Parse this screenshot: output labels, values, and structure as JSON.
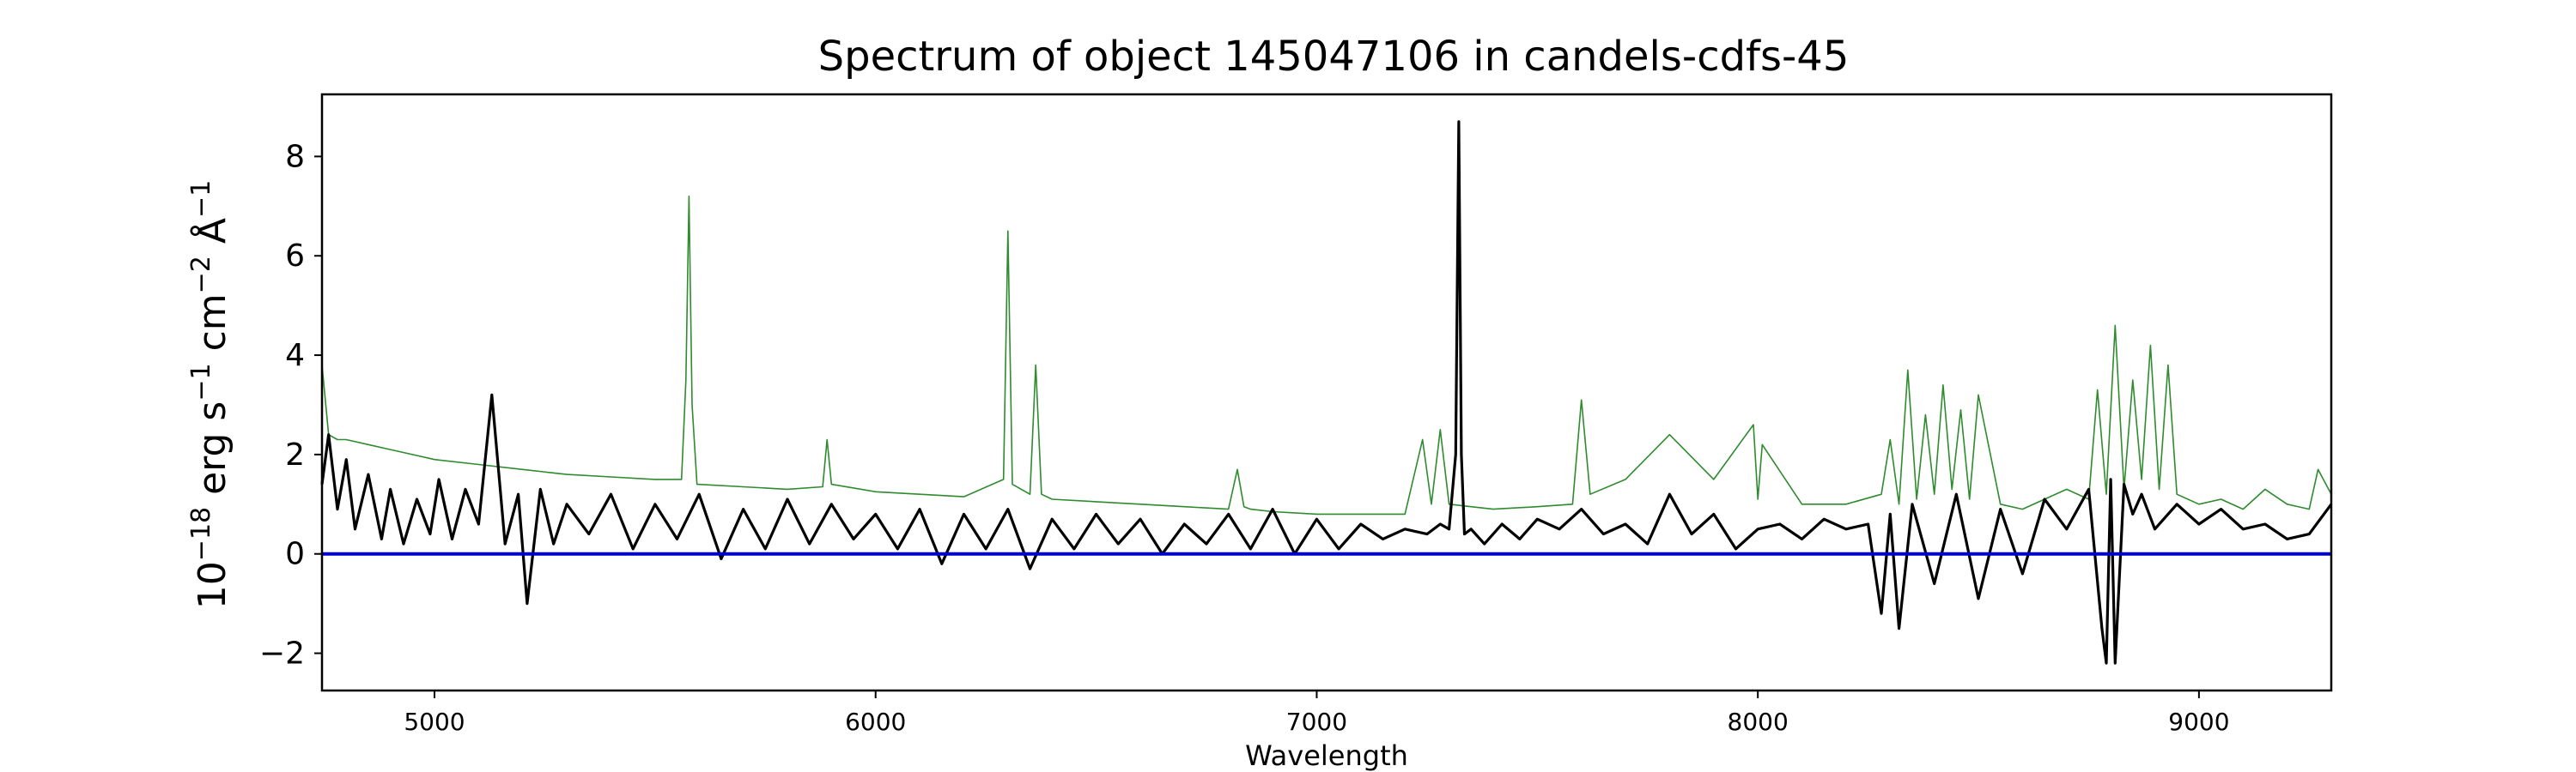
{
  "chart_data": {
    "type": "line",
    "title": "Spectrum of object 145047106 in candels-cdfs-45",
    "xlabel": "Wavelength",
    "ylabel": {
      "base": "10",
      "exp1": "−18",
      "mid1": " erg s",
      "exp2": "−1",
      "mid2": " cm",
      "exp3": "−2",
      "mid3": " Å",
      "exp4": "−1"
    },
    "xlim": [
      4745,
      9300
    ],
    "ylim": [
      -2.75,
      9.25
    ],
    "grid": false,
    "x_ticks": [
      5000,
      6000,
      7000,
      8000,
      9000
    ],
    "x_tick_labels": [
      "5000",
      "6000",
      "7000",
      "8000",
      "9000"
    ],
    "y_ticks": [
      -2,
      0,
      2,
      4,
      6,
      8
    ],
    "y_tick_labels": [
      "−2",
      "0",
      "2",
      "4",
      "6",
      "8"
    ],
    "baseline": {
      "y": 0,
      "color": "#0000cc"
    },
    "colors": {
      "flux": "#000000",
      "noise": "#2e8b2e",
      "baseline": "#0000cc"
    },
    "series": [
      {
        "key": "flux",
        "x": [
          4745,
          4760,
          4780,
          4800,
          4820,
          4850,
          4880,
          4900,
          4930,
          4960,
          4990,
          5010,
          5040,
          5070,
          5100,
          5130,
          5160,
          5190,
          5210,
          5240,
          5270,
          5300,
          5350,
          5400,
          5450,
          5500,
          5550,
          5600,
          5650,
          5700,
          5750,
          5800,
          5850,
          5900,
          5950,
          6000,
          6050,
          6100,
          6150,
          6200,
          6250,
          6300,
          6350,
          6400,
          6450,
          6500,
          6550,
          6600,
          6650,
          6700,
          6750,
          6800,
          6850,
          6900,
          6950,
          7000,
          7050,
          7100,
          7150,
          7200,
          7250,
          7280,
          7300,
          7315,
          7322,
          7328,
          7335,
          7350,
          7380,
          7420,
          7460,
          7500,
          7550,
          7600,
          7650,
          7700,
          7750,
          7800,
          7850,
          7900,
          7950,
          8000,
          8050,
          8100,
          8150,
          8200,
          8250,
          8280,
          8300,
          8320,
          8350,
          8400,
          8450,
          8500,
          8550,
          8600,
          8650,
          8700,
          8750,
          8780,
          8790,
          8800,
          8810,
          8830,
          8850,
          8870,
          8900,
          8950,
          9000,
          9050,
          9100,
          9150,
          9200,
          9250,
          9300
        ],
        "y": [
          1.4,
          2.4,
          0.9,
          1.9,
          0.5,
          1.6,
          0.3,
          1.3,
          0.2,
          1.1,
          0.4,
          1.5,
          0.3,
          1.3,
          0.6,
          3.2,
          0.2,
          1.2,
          -1.0,
          1.3,
          0.2,
          1.0,
          0.4,
          1.2,
          0.1,
          1.0,
          0.3,
          1.2,
          -0.1,
          0.9,
          0.1,
          1.1,
          0.2,
          1.0,
          0.3,
          0.8,
          0.1,
          0.9,
          -0.2,
          0.8,
          0.1,
          0.9,
          -0.3,
          0.7,
          0.1,
          0.8,
          0.2,
          0.7,
          0.0,
          0.6,
          0.2,
          0.8,
          0.1,
          0.9,
          0.0,
          0.7,
          0.1,
          0.6,
          0.3,
          0.5,
          0.4,
          0.6,
          0.5,
          2.0,
          8.7,
          2.0,
          0.4,
          0.5,
          0.2,
          0.6,
          0.3,
          0.7,
          0.5,
          0.9,
          0.4,
          0.6,
          0.2,
          1.2,
          0.4,
          0.8,
          0.1,
          0.5,
          0.6,
          0.3,
          0.7,
          0.5,
          0.6,
          -1.2,
          0.8,
          -1.5,
          1.0,
          -0.6,
          1.2,
          -0.9,
          0.9,
          -0.4,
          1.1,
          0.5,
          1.3,
          -1.5,
          -2.2,
          1.5,
          -2.2,
          1.4,
          0.8,
          1.2,
          0.5,
          1.0,
          0.6,
          0.9,
          0.5,
          0.6,
          0.3,
          0.4,
          1.0
        ]
      },
      {
        "key": "noise",
        "x": [
          4745,
          4760,
          4780,
          4800,
          4850,
          4900,
          4950,
          5000,
          5100,
          5200,
          5300,
          5400,
          5500,
          5560,
          5570,
          5577,
          5584,
          5595,
          5700,
          5800,
          5880,
          5890,
          5900,
          6000,
          6100,
          6200,
          6290,
          6300,
          6310,
          6350,
          6363,
          6376,
          6400,
          6500,
          6600,
          6700,
          6800,
          6820,
          6835,
          6850,
          6900,
          7000,
          7100,
          7200,
          7240,
          7260,
          7280,
          7300,
          7400,
          7500,
          7580,
          7600,
          7620,
          7700,
          7800,
          7900,
          7990,
          8000,
          8010,
          8100,
          8200,
          8280,
          8300,
          8320,
          8340,
          8360,
          8380,
          8400,
          8420,
          8440,
          8460,
          8480,
          8500,
          8550,
          8600,
          8700,
          8750,
          8770,
          8790,
          8810,
          8830,
          8850,
          8870,
          8890,
          8910,
          8930,
          8950,
          9000,
          9050,
          9100,
          9150,
          9200,
          9250,
          9270,
          9300
        ],
        "y": [
          3.8,
          2.4,
          2.3,
          2.3,
          2.2,
          2.1,
          2.0,
          1.9,
          1.8,
          1.7,
          1.6,
          1.55,
          1.5,
          1.5,
          3.5,
          7.2,
          3.0,
          1.4,
          1.35,
          1.3,
          1.35,
          2.3,
          1.4,
          1.25,
          1.2,
          1.15,
          1.5,
          6.5,
          1.4,
          1.2,
          3.8,
          1.2,
          1.1,
          1.05,
          1.0,
          0.95,
          0.9,
          1.7,
          0.95,
          0.9,
          0.85,
          0.8,
          0.8,
          0.8,
          2.3,
          1.0,
          2.5,
          1.0,
          0.9,
          0.95,
          1.0,
          3.1,
          1.2,
          1.5,
          2.4,
          1.5,
          2.6,
          1.1,
          2.2,
          1.0,
          1.0,
          1.2,
          2.3,
          1.0,
          3.7,
          1.1,
          2.8,
          1.2,
          3.4,
          1.3,
          2.9,
          1.1,
          3.2,
          1.0,
          0.9,
          1.3,
          1.1,
          3.3,
          1.2,
          4.6,
          1.3,
          3.5,
          1.5,
          4.2,
          1.3,
          3.8,
          1.2,
          1.0,
          1.1,
          0.9,
          1.3,
          1.0,
          0.9,
          1.7,
          1.2
        ]
      }
    ]
  }
}
